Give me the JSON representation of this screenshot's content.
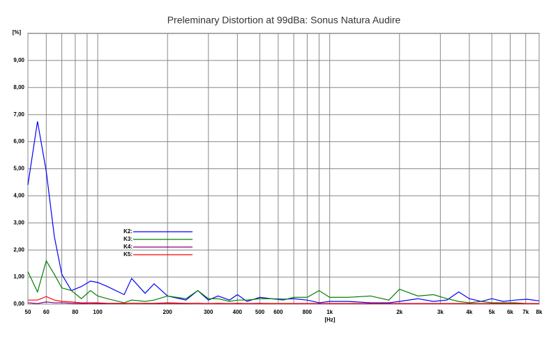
{
  "chart_data": {
    "type": "line",
    "title": "Preleminary Distortion at 99dBa: Sonus Natura Audire",
    "y_label": "[%]",
    "x_label": "[Hz]",
    "x_scale": "log",
    "grid": true,
    "xlim": [
      50,
      8000
    ],
    "xticks": [
      50,
      60,
      80,
      100,
      200,
      300,
      400,
      500,
      600,
      800,
      {
        "value": 1000,
        "label": "1k"
      },
      {
        "value": 2000,
        "label": "2k"
      },
      {
        "value": 3000,
        "label": "3k"
      },
      {
        "value": 4000,
        "label": "4k"
      },
      {
        "value": 5000,
        "label": "5k"
      },
      {
        "value": 6000,
        "label": "6k"
      },
      {
        "value": 7000,
        "label": "7k"
      },
      {
        "value": 8000,
        "label": "8k"
      }
    ],
    "xminor_ticks": [
      70,
      90,
      700,
      900
    ],
    "ylim": [
      0,
      10
    ],
    "yticks": [
      {
        "value": 0,
        "label": "0,00"
      },
      {
        "value": 1,
        "label": "1,00"
      },
      {
        "value": 2,
        "label": "2,00"
      },
      {
        "value": 3,
        "label": "3,00"
      },
      {
        "value": 4,
        "label": "4,00"
      },
      {
        "value": 5,
        "label": "5,00"
      },
      {
        "value": 6,
        "label": "6,00"
      },
      {
        "value": 7,
        "label": "7,00"
      },
      {
        "value": 8,
        "label": "8,00"
      },
      {
        "value": 9,
        "label": "9,00"
      }
    ],
    "x": [
      50,
      55,
      60,
      65,
      70,
      77,
      85,
      93,
      100,
      110,
      130,
      140,
      160,
      175,
      200,
      240,
      270,
      300,
      330,
      370,
      400,
      440,
      500,
      560,
      630,
      700,
      800,
      900,
      1000,
      1200,
      1500,
      1800,
      2000,
      2400,
      2800,
      3200,
      3600,
      4000,
      4500,
      5000,
      5600,
      6300,
      7100,
      8000
    ],
    "series": [
      {
        "name": "K2:",
        "color": "#0000ff",
        "values": [
          4.4,
          6.75,
          4.9,
          2.5,
          1.1,
          0.5,
          0.65,
          0.85,
          0.8,
          0.65,
          0.35,
          0.95,
          0.4,
          0.75,
          0.3,
          0.15,
          0.5,
          0.15,
          0.3,
          0.15,
          0.35,
          0.1,
          0.25,
          0.2,
          0.18,
          0.2,
          0.15,
          0.05,
          0.1,
          0.1,
          0.05,
          0.05,
          0.1,
          0.2,
          0.1,
          0.15,
          0.45,
          0.2,
          0.1,
          0.2,
          0.1,
          0.15,
          0.18,
          0.12
        ]
      },
      {
        "name": "K3:",
        "color": "#008000",
        "values": [
          1.2,
          0.45,
          1.6,
          1.1,
          0.6,
          0.5,
          0.2,
          0.5,
          0.3,
          0.2,
          0.05,
          0.15,
          0.1,
          0.15,
          0.3,
          0.2,
          0.5,
          0.2,
          0.2,
          0.1,
          0.15,
          0.15,
          0.2,
          0.2,
          0.15,
          0.25,
          0.25,
          0.5,
          0.25,
          0.25,
          0.3,
          0.15,
          0.55,
          0.3,
          0.35,
          0.2,
          0.1,
          0.05,
          0.1,
          0.05,
          0.05,
          0.05,
          0.02,
          0.02
        ]
      },
      {
        "name": "K4:",
        "color": "#800080",
        "values": [
          0.05,
          0.02,
          0.08,
          0.05,
          0.05,
          0.03,
          0.02,
          0.03,
          0.02,
          0.02,
          0.02,
          0.03,
          0.02,
          0.02,
          0.03,
          0.02,
          0.03,
          0.02,
          0.02,
          0.02,
          0.02,
          0.02,
          0.03,
          0.02,
          0.02,
          0.02,
          0.02,
          0.02,
          0.02,
          0.02,
          0.02,
          0.02,
          0.02,
          0.02,
          0.02,
          0.02,
          0.02,
          0.02,
          0.02,
          0.02,
          0.02,
          0.02,
          0.02,
          0.02
        ]
      },
      {
        "name": "K5:",
        "color": "#ff0000",
        "values": [
          0.15,
          0.15,
          0.28,
          0.15,
          0.1,
          0.08,
          0.05,
          0.05,
          0.05,
          0.03,
          0.03,
          0.03,
          0.03,
          0.03,
          0.05,
          0.03,
          0.03,
          0.02,
          0.03,
          0.02,
          0.03,
          0.02,
          0.02,
          0.02,
          0.02,
          0.02,
          0.02,
          0.02,
          0.02,
          0.02,
          0.02,
          0.02,
          0.02,
          0.02,
          0.02,
          0.02,
          0.02,
          0.02,
          0.02,
          0.02,
          0.02,
          0.02,
          0.02,
          0.02
        ]
      }
    ]
  }
}
